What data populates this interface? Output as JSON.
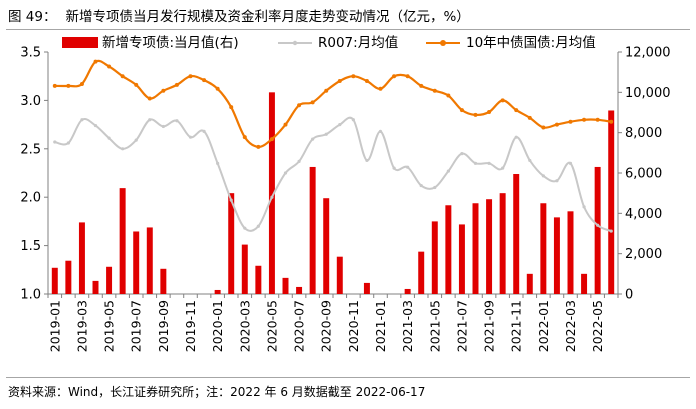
{
  "figure": {
    "label": "图 49：",
    "title": "新增专项债当月发行规模及资金利率月度走势变动情况（亿元，%）",
    "source": "资料来源：Wind，长江证券研究所；注：2022 年 6 月数据截至 2022-06-17"
  },
  "colors": {
    "bar": "#e00000",
    "r007": "#c8c8c8",
    "bond": "#f07800",
    "axis": "#808080"
  },
  "chart_data": {
    "type": "bar",
    "categories": [
      "2019-01",
      "2019-02",
      "2019-03",
      "2019-04",
      "2019-05",
      "2019-06",
      "2019-07",
      "2019-08",
      "2019-09",
      "2019-10",
      "2019-11",
      "2019-12",
      "2020-01",
      "2020-02",
      "2020-03",
      "2020-04",
      "2020-05",
      "2020-06",
      "2020-07",
      "2020-08",
      "2020-09",
      "2020-10",
      "2020-11",
      "2020-12",
      "2021-01",
      "2021-02",
      "2021-03",
      "2021-04",
      "2021-05",
      "2021-06",
      "2021-07",
      "2021-08",
      "2021-09",
      "2021-10",
      "2021-11",
      "2021-12",
      "2022-01",
      "2022-02",
      "2022-03",
      "2022-04",
      "2022-05",
      "2022-06"
    ],
    "xtick_labels": [
      "2019-01",
      "2019-03",
      "2019-05",
      "2019-07",
      "2019-09",
      "2019-11",
      "2020-01",
      "2020-03",
      "2020-05",
      "2020-07",
      "2020-09",
      "2020-11",
      "2021-01",
      "2021-03",
      "2021-05",
      "2021-07",
      "2021-09",
      "2021-11",
      "2022-01",
      "2022-03",
      "2022-05"
    ],
    "series": [
      {
        "name": "新增专项债:当月值(右)",
        "kind": "bar",
        "axis": "right",
        "values": [
          1300,
          1650,
          3550,
          650,
          1350,
          5250,
          3100,
          3300,
          1250,
          0,
          0,
          0,
          200,
          5000,
          2450,
          1400,
          10000,
          800,
          350,
          6300,
          4750,
          1850,
          0,
          550,
          0,
          0,
          250,
          2100,
          3600,
          4400,
          3450,
          4500,
          4700,
          5000,
          5950,
          1000,
          4500,
          3800,
          4100,
          1000,
          6300,
          9100
        ]
      },
      {
        "name": "R007:月均值",
        "kind": "line",
        "axis": "left",
        "values": [
          2.57,
          2.56,
          2.8,
          2.74,
          2.61,
          2.5,
          2.59,
          2.8,
          2.73,
          2.79,
          2.62,
          2.68,
          2.35,
          1.97,
          1.68,
          1.7,
          2.0,
          2.25,
          2.37,
          2.6,
          2.65,
          2.75,
          2.8,
          2.38,
          2.68,
          2.3,
          2.31,
          2.12,
          2.1,
          2.27,
          2.45,
          2.35,
          2.35,
          2.3,
          2.62,
          2.38,
          2.22,
          2.17,
          2.35,
          1.9,
          1.71,
          1.65
        ]
      },
      {
        "name": "10年中债国债:月均值",
        "kind": "line",
        "axis": "left",
        "values": [
          3.15,
          3.15,
          3.17,
          3.4,
          3.35,
          3.25,
          3.16,
          3.02,
          3.1,
          3.16,
          3.25,
          3.21,
          3.12,
          2.93,
          2.62,
          2.52,
          2.6,
          2.75,
          2.95,
          2.98,
          3.1,
          3.2,
          3.25,
          3.2,
          3.12,
          3.25,
          3.25,
          3.15,
          3.1,
          3.05,
          2.9,
          2.85,
          2.88,
          3.0,
          2.9,
          2.82,
          2.72,
          2.75,
          2.78,
          2.8,
          2.8,
          2.78
        ]
      }
    ],
    "y_left": {
      "min": 1.0,
      "max": 3.5,
      "ticks": [
        "1.0",
        "1.5",
        "2.0",
        "2.5",
        "3.0",
        "3.5"
      ]
    },
    "y_right": {
      "min": 0,
      "max": 12000,
      "ticks": [
        "0",
        "2,000",
        "4,000",
        "6,000",
        "8,000",
        "10,000",
        "12,000"
      ]
    },
    "legend": {
      "position": "top",
      "entries": [
        "新增专项债:当月值(右)",
        "R007:月均值",
        "10年中债国债:月均值"
      ]
    },
    "grid": false
  }
}
